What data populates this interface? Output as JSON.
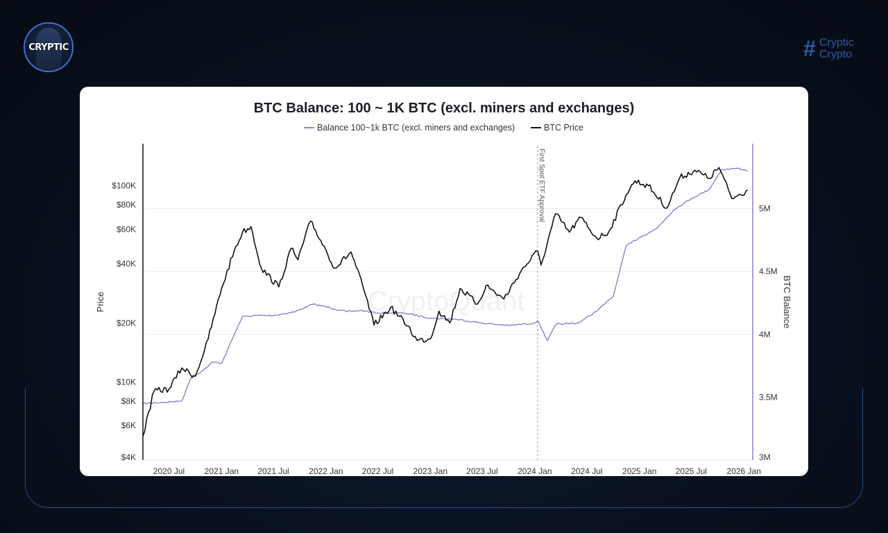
{
  "branding": {
    "logo_text": "CRYPTIC",
    "brand_mark": "#",
    "brand_line1": "Cryptic",
    "brand_line2": "Crypto",
    "accent": "#2f5aa8"
  },
  "chart_data": {
    "type": "line",
    "title": "BTC Balance: 100 ~ 1K BTC (excl. miners and exchanges)",
    "watermark": "CryptoQuant",
    "legend": {
      "placement": "top-center"
    },
    "ylabel_left": "Price",
    "ylabel_right": "BTC Balance",
    "x_range": [
      "2020-04-01",
      "2026-02-01"
    ],
    "x_ticks": [
      {
        "date": "2020-07-01",
        "label": "2020 Jul"
      },
      {
        "date": "2021-01-01",
        "label": "2021 Jan"
      },
      {
        "date": "2021-07-01",
        "label": "2021 Jul"
      },
      {
        "date": "2022-01-01",
        "label": "2022 Jan"
      },
      {
        "date": "2022-07-01",
        "label": "2022 Jul"
      },
      {
        "date": "2023-01-01",
        "label": "2023 Jan"
      },
      {
        "date": "2023-07-01",
        "label": "2023 Jul"
      },
      {
        "date": "2024-01-01",
        "label": "2024 Jan"
      },
      {
        "date": "2024-07-01",
        "label": "2024 Jul"
      },
      {
        "date": "2025-01-01",
        "label": "2025 Jan"
      },
      {
        "date": "2025-07-01",
        "label": "2025 Jul"
      },
      {
        "date": "2026-01-01",
        "label": "2026 Jan"
      }
    ],
    "y_left": {
      "scale": "log",
      "range": [
        4000,
        160000
      ],
      "ticks": [
        {
          "value": 4000,
          "label": "$4K"
        },
        {
          "value": 6000,
          "label": "$6K"
        },
        {
          "value": 8000,
          "label": "$8K"
        },
        {
          "value": 10000,
          "label": "$10K"
        },
        {
          "value": 20000,
          "label": "$20K"
        },
        {
          "value": 40000,
          "label": "$40K"
        },
        {
          "value": 60000,
          "label": "$60K"
        },
        {
          "value": 80000,
          "label": "$80K"
        },
        {
          "value": 100000,
          "label": "$100K"
        }
      ]
    },
    "y_right": {
      "scale": "linear",
      "range": [
        3000000,
        5500000
      ],
      "ticks": [
        {
          "value": 3000000,
          "label": "3M"
        },
        {
          "value": 3500000,
          "label": "3.5M"
        },
        {
          "value": 4000000,
          "label": "4M"
        },
        {
          "value": 4500000,
          "label": "4.5M"
        },
        {
          "value": 5000000,
          "label": "5M"
        }
      ]
    },
    "gridlines": [
      5000000,
      4500000,
      4000000
    ],
    "annotations": [
      {
        "date": "2024-01-11",
        "text": "First Spot ETF Approval"
      }
    ],
    "series": [
      {
        "name": "Balance 100~1k BTC (excl. miners and exchanges)",
        "axis": "right",
        "color": "#8a80c8",
        "points": [
          [
            "2020-04-01",
            3450000
          ],
          [
            "2020-06-15",
            3460000
          ],
          [
            "2020-08-15",
            3470000
          ],
          [
            "2020-09-15",
            3650000
          ],
          [
            "2020-11-01",
            3720000
          ],
          [
            "2020-12-01",
            3780000
          ],
          [
            "2021-01-01",
            3770000
          ],
          [
            "2021-02-15",
            4000000
          ],
          [
            "2021-03-15",
            4140000
          ],
          [
            "2021-05-01",
            4150000
          ],
          [
            "2021-07-01",
            4150000
          ],
          [
            "2021-09-15",
            4180000
          ],
          [
            "2021-11-15",
            4240000
          ],
          [
            "2022-01-01",
            4220000
          ],
          [
            "2022-03-15",
            4180000
          ],
          [
            "2022-05-01",
            4190000
          ],
          [
            "2022-07-01",
            4170000
          ],
          [
            "2022-10-01",
            4170000
          ],
          [
            "2023-01-01",
            4130000
          ],
          [
            "2023-04-01",
            4120000
          ],
          [
            "2023-07-01",
            4090000
          ],
          [
            "2023-10-01",
            4070000
          ],
          [
            "2024-01-01",
            4090000
          ],
          [
            "2024-01-11",
            4110000
          ],
          [
            "2024-02-15",
            3950000
          ],
          [
            "2024-03-15",
            4080000
          ],
          [
            "2024-06-01",
            4090000
          ],
          [
            "2024-08-01",
            4180000
          ],
          [
            "2024-10-01",
            4300000
          ],
          [
            "2024-11-15",
            4700000
          ],
          [
            "2025-01-01",
            4770000
          ],
          [
            "2025-03-01",
            4840000
          ],
          [
            "2025-05-01",
            4990000
          ],
          [
            "2025-07-01",
            5080000
          ],
          [
            "2025-09-01",
            5150000
          ],
          [
            "2025-10-15",
            5310000
          ],
          [
            "2025-12-15",
            5320000
          ],
          [
            "2026-01-15",
            5300000
          ]
        ]
      },
      {
        "name": "BTC Price",
        "axis": "left",
        "color": "#111111",
        "points": [
          [
            "2020-04-01",
            5300
          ],
          [
            "2020-05-10",
            9000
          ],
          [
            "2020-07-01",
            9200
          ],
          [
            "2020-08-15",
            11800
          ],
          [
            "2020-10-01",
            10700
          ],
          [
            "2020-11-15",
            16500
          ],
          [
            "2021-01-01",
            30000
          ],
          [
            "2021-02-15",
            47000
          ],
          [
            "2021-03-15",
            58000
          ],
          [
            "2021-04-14",
            62000
          ],
          [
            "2021-05-20",
            38000
          ],
          [
            "2021-07-20",
            30500
          ],
          [
            "2021-09-01",
            48000
          ],
          [
            "2021-09-25",
            42000
          ],
          [
            "2021-11-08",
            66000
          ],
          [
            "2022-01-01",
            47000
          ],
          [
            "2022-02-01",
            38000
          ],
          [
            "2022-03-30",
            46000
          ],
          [
            "2022-05-15",
            29000
          ],
          [
            "2022-06-18",
            19500
          ],
          [
            "2022-08-15",
            24000
          ],
          [
            "2022-10-15",
            19300
          ],
          [
            "2022-11-15",
            16300
          ],
          [
            "2023-01-01",
            16600
          ],
          [
            "2023-01-31",
            23000
          ],
          [
            "2023-03-10",
            20000
          ],
          [
            "2023-04-15",
            30000
          ],
          [
            "2023-06-15",
            25000
          ],
          [
            "2023-07-15",
            31000
          ],
          [
            "2023-09-15",
            26500
          ],
          [
            "2023-11-15",
            37000
          ],
          [
            "2024-01-11",
            46500
          ],
          [
            "2024-01-23",
            39500
          ],
          [
            "2024-03-14",
            72000
          ],
          [
            "2024-05-01",
            58000
          ],
          [
            "2024-06-10",
            69000
          ],
          [
            "2024-08-05",
            54000
          ],
          [
            "2024-09-15",
            58000
          ],
          [
            "2024-11-15",
            90000
          ],
          [
            "2024-12-17",
            106000
          ],
          [
            "2025-02-01",
            100000
          ],
          [
            "2025-04-07",
            77000
          ],
          [
            "2025-05-22",
            110000
          ],
          [
            "2025-07-14",
            120000
          ],
          [
            "2025-09-01",
            109000
          ],
          [
            "2025-10-06",
            124000
          ],
          [
            "2025-11-20",
            86000
          ],
          [
            "2026-01-15",
            95000
          ]
        ]
      }
    ]
  }
}
